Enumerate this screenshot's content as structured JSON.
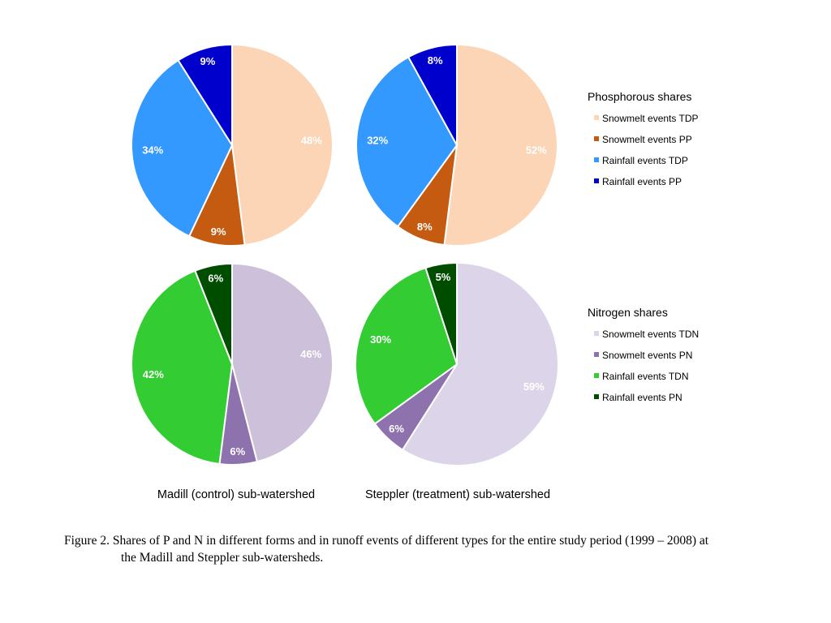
{
  "chart_data": [
    {
      "type": "pie",
      "categories": [
        "Snowmelt events TDP",
        "Snowmelt events PP",
        "Rainfall events TDP",
        "Rainfall events PP"
      ],
      "values": [
        48,
        9,
        34,
        9
      ],
      "labels": [
        "48%",
        "9%",
        "34%",
        "9%"
      ],
      "colors": [
        "#fbd5b5",
        "#c55a11",
        "#3399ff",
        "#0000cc"
      ],
      "xlabel": "Madill (control) sub-watershed"
    },
    {
      "type": "pie",
      "categories": [
        "Snowmelt events TDP",
        "Snowmelt events PP",
        "Rainfall events TDP",
        "Rainfall events PP"
      ],
      "values": [
        52,
        8,
        32,
        8
      ],
      "labels": [
        "52%",
        "8%",
        "32%",
        "8%"
      ],
      "colors": [
        "#fbd5b5",
        "#c55a11",
        "#3399ff",
        "#0000cc"
      ],
      "xlabel": "Steppler (treatment) sub-watershed"
    },
    {
      "type": "pie",
      "categories": [
        "Snowmelt events TDN",
        "Snowmelt events PN",
        "Rainfall events TDN",
        "Rainfall events PN"
      ],
      "values": [
        46,
        6,
        42,
        6
      ],
      "labels": [
        "46%",
        "6%",
        "42%",
        "6%"
      ],
      "colors": [
        "#ccc0da",
        "#8e72ad",
        "#33cc33",
        "#004d00"
      ],
      "xlabel": "Madill (control) sub-watershed"
    },
    {
      "type": "pie",
      "categories": [
        "Snowmelt events TDN",
        "Snowmelt events PN",
        "Rainfall events TDN",
        "Rainfall events PN"
      ],
      "values": [
        59,
        6,
        30,
        5
      ],
      "labels": [
        "59%",
        "6%",
        "30%",
        "5%"
      ],
      "colors": [
        "#dcd4e8",
        "#8e72ad",
        "#33cc33",
        "#004d00"
      ],
      "xlabel": "Steppler (treatment) sub-watershed"
    }
  ],
  "legends": [
    {
      "title": "Phosphorous shares",
      "items": [
        {
          "label": "Snowmelt events TDP",
          "color": "#fbd5b5"
        },
        {
          "label": "Snowmelt events PP",
          "color": "#c55a11"
        },
        {
          "label": "Rainfall events TDP",
          "color": "#3399ff"
        },
        {
          "label": "Rainfall events PP",
          "color": "#0000cc"
        }
      ]
    },
    {
      "title": "Nitrogen shares",
      "items": [
        {
          "label": "Snowmelt events TDN",
          "color": "#dcd4e8"
        },
        {
          "label": "Snowmelt events PN",
          "color": "#8e72ad"
        },
        {
          "label": "Rainfall events TDN",
          "color": "#33cc33"
        },
        {
          "label": "Rainfall events PN",
          "color": "#004d00"
        }
      ]
    }
  ],
  "caption": {
    "line1": "Figure 2. Shares of P and N in different forms and in runoff events of different types for the entire study period (1999 – 2008) at",
    "line2": "the Madill and Steppler sub-watersheds."
  }
}
